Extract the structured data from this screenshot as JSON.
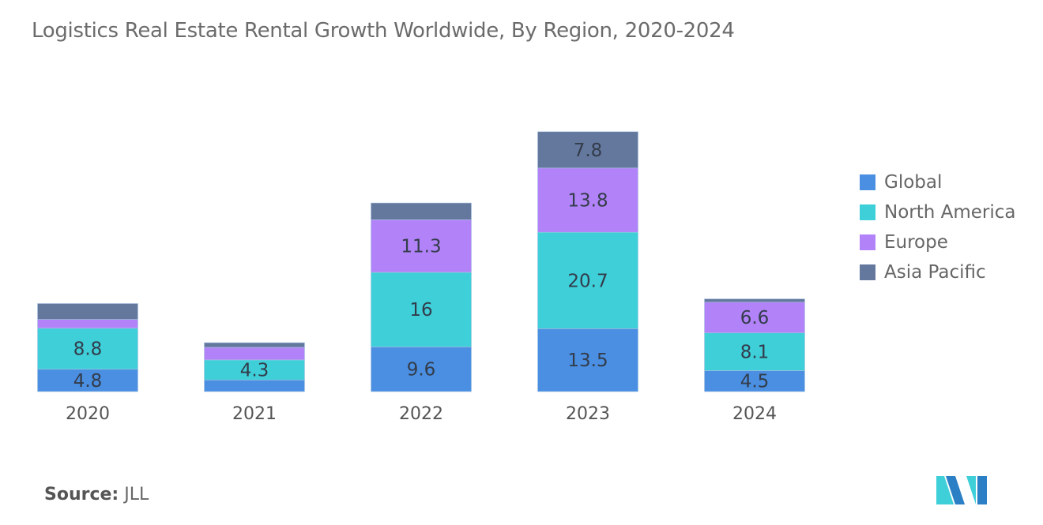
{
  "title": "Logistics Real Estate Rental Growth Worldwide,  By Region, 2020-2024",
  "source_label": "Source:",
  "source_value": "JLL",
  "logo_text": "MI",
  "chart_data": {
    "type": "bar",
    "stacked": true,
    "title": "Logistics Real Estate Rental Growth Worldwide,  By Region, 2020-2024",
    "categories": [
      "2020",
      "2021",
      "2022",
      "2023",
      "2024"
    ],
    "series": [
      {
        "name": "Global",
        "color": "#4a8fe2",
        "values": [
          4.8,
          2.5,
          9.6,
          13.5,
          4.5
        ],
        "labels": [
          "4.8",
          null,
          "9.6",
          "13.5",
          "4.5"
        ]
      },
      {
        "name": "North America",
        "color": "#3ecfd9",
        "values": [
          8.8,
          4.3,
          16,
          20.7,
          8.1
        ],
        "labels": [
          "8.8",
          "4.3",
          "16",
          "20.7",
          "8.1"
        ]
      },
      {
        "name": "Europe",
        "color": "#b283f8",
        "values": [
          1.9,
          2.7,
          11.3,
          13.8,
          6.6
        ],
        "labels": [
          null,
          null,
          "11.3",
          "13.8",
          "6.6"
        ]
      },
      {
        "name": "Asia Pacific",
        "color": "#64789e",
        "values": [
          3.4,
          1.0,
          3.6,
          7.8,
          0.7
        ],
        "labels": [
          null,
          null,
          null,
          "7.8",
          null
        ]
      }
    ],
    "xlabel": "",
    "ylabel": "",
    "ylim": [
      0,
      60
    ],
    "grid": false,
    "legend": "right"
  }
}
